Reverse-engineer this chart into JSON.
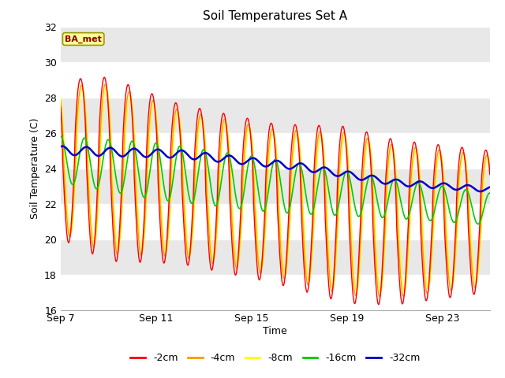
{
  "title": "Soil Temperatures Set A",
  "xlabel": "Time",
  "ylabel": "Soil Temperature (C)",
  "ylim": [
    16,
    32
  ],
  "yticks": [
    16,
    18,
    20,
    22,
    24,
    26,
    28,
    30,
    32
  ],
  "x_tick_labels": [
    "Sep 7",
    "Sep 11",
    "Sep 15",
    "Sep 19",
    "Sep 23"
  ],
  "x_tick_positions": [
    0,
    4,
    8,
    12,
    16
  ],
  "annotation": "BA_met",
  "series_colors": {
    "-2cm": "#ff0000",
    "-4cm": "#ff9900",
    "-8cm": "#ffff00",
    "-16cm": "#00cc00",
    "-32cm": "#0000cc"
  },
  "background_color": "#ffffff",
  "plot_bg_color": "#e8e8e8",
  "num_days": 18,
  "points_per_day": 48,
  "title_fontsize": 11,
  "axis_fontsize": 9,
  "tick_fontsize": 9
}
